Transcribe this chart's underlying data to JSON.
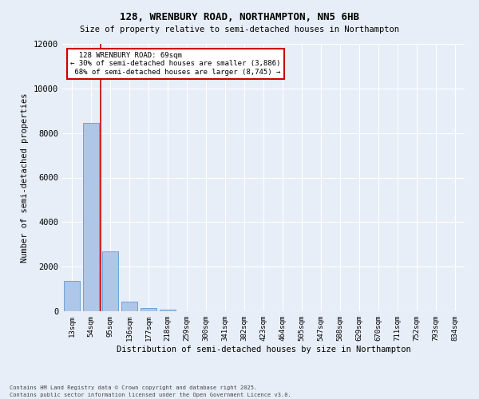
{
  "title": "128, WRENBURY ROAD, NORTHAMPTON, NN5 6HB",
  "subtitle": "Size of property relative to semi-detached houses in Northampton",
  "xlabel": "Distribution of semi-detached houses by size in Northampton",
  "ylabel": "Number of semi-detached properties",
  "categories": [
    "13sqm",
    "54sqm",
    "95sqm",
    "136sqm",
    "177sqm",
    "218sqm",
    "259sqm",
    "300sqm",
    "341sqm",
    "382sqm",
    "423sqm",
    "464sqm",
    "505sqm",
    "547sqm",
    "588sqm",
    "629sqm",
    "670sqm",
    "711sqm",
    "752sqm",
    "793sqm",
    "834sqm"
  ],
  "values": [
    1350,
    8450,
    2700,
    420,
    150,
    70,
    0,
    0,
    0,
    0,
    0,
    0,
    0,
    0,
    0,
    0,
    0,
    0,
    0,
    0,
    0
  ],
  "bar_color": "#aec6e8",
  "bar_edge_color": "#5b9bd5",
  "property_line_x": 1.5,
  "property_label": "128 WRENBURY ROAD: 69sqm",
  "smaller_pct": "30%",
  "smaller_count": "3,886",
  "larger_pct": "68%",
  "larger_count": "8,745",
  "annotation_box_color": "#cc0000",
  "ylim": [
    0,
    12000
  ],
  "yticks": [
    0,
    2000,
    4000,
    6000,
    8000,
    10000,
    12000
  ],
  "background_color": "#e8eef8",
  "grid_color": "#ffffff",
  "footer1": "Contains HM Land Registry data © Crown copyright and database right 2025.",
  "footer2": "Contains public sector information licensed under the Open Government Licence v3.0."
}
